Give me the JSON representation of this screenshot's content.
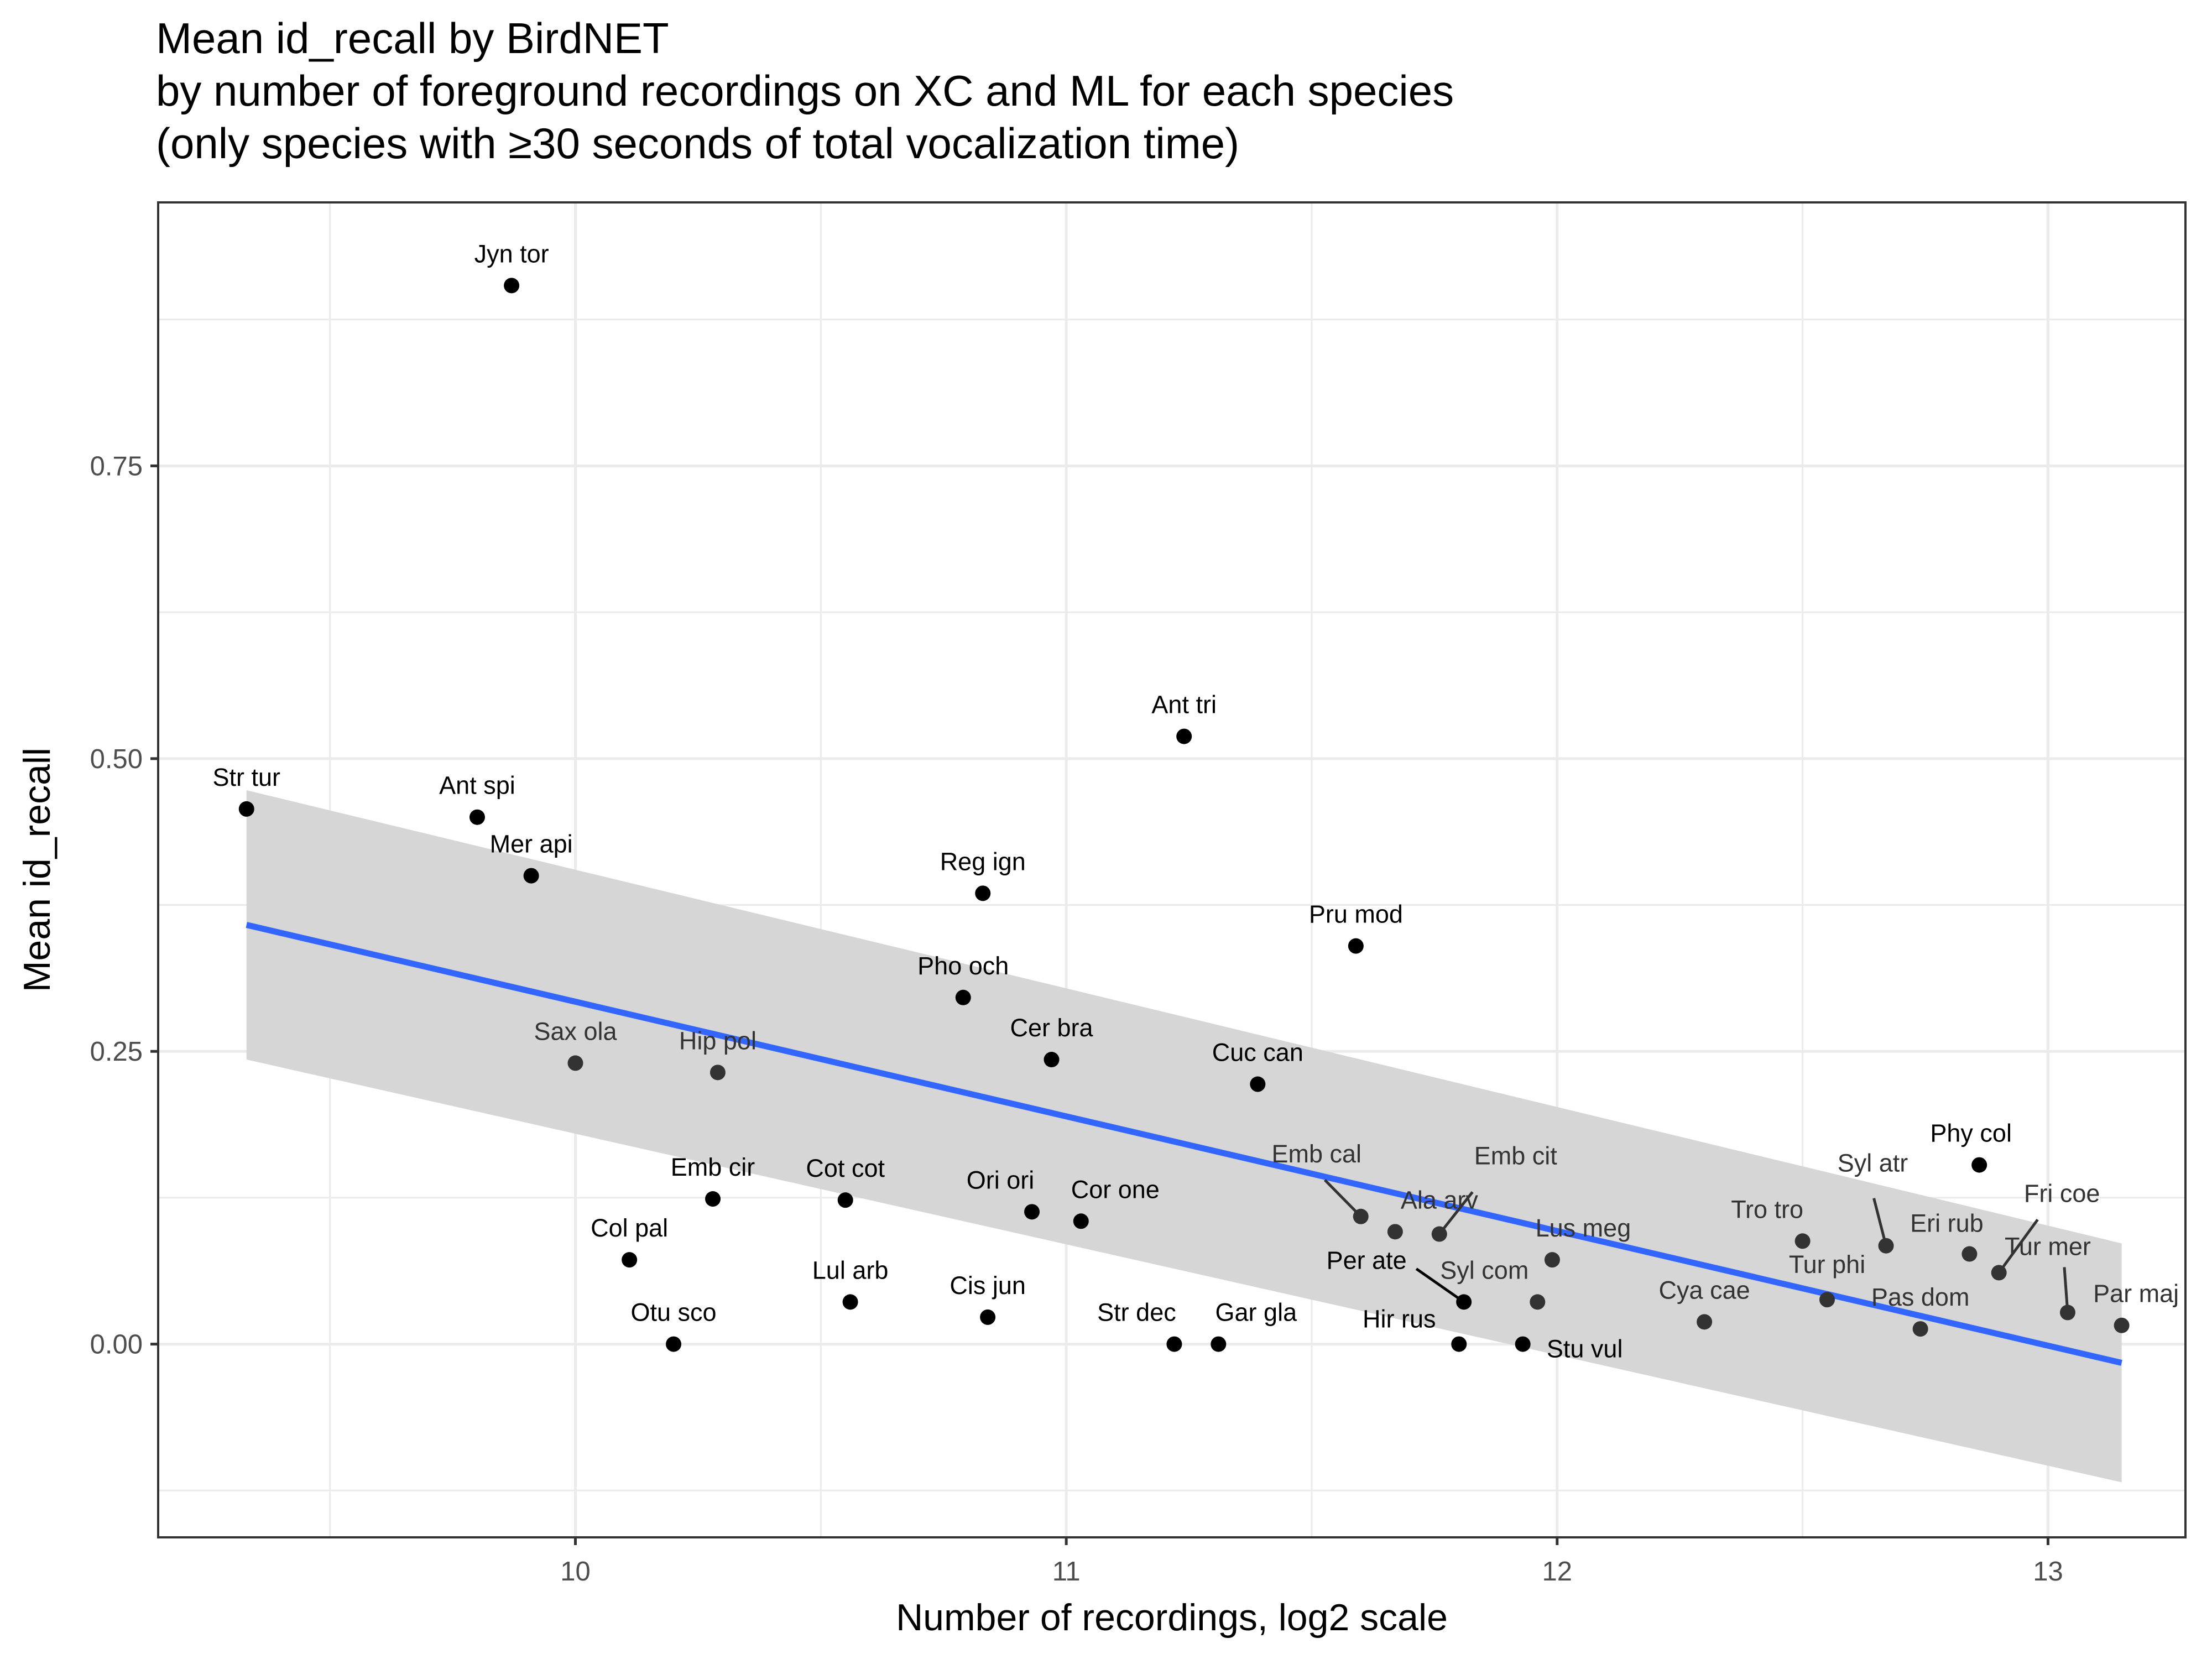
{
  "title": "Mean id_recall by BirdNET",
  "subtitle": [
    "by number of foreground recordings on XC and ML for each species",
    "(only species with ≥30 seconds of total vocalization time)"
  ],
  "chart_data": {
    "type": "scatter",
    "title": "Mean id_recall by BirdNET",
    "xlabel": "Number of recordings, log2 scale",
    "ylabel": "Mean id_recall",
    "xlim": [
      9.15,
      13.28
    ],
    "ylim": [
      -0.165,
      0.975
    ],
    "x_ticks": [
      10,
      11,
      12,
      13
    ],
    "x_tick_labels": [
      "10",
      "11",
      "12",
      "13"
    ],
    "y_ticks": [
      0.0,
      0.25,
      0.5,
      0.75
    ],
    "y_tick_labels": [
      "0.00",
      "0.25",
      "0.50",
      "0.75"
    ],
    "grid": true,
    "theme": "bw",
    "point_color": "#000000",
    "points": [
      {
        "label": "Jyn tor",
        "x": 9.87,
        "y": 0.904
      },
      {
        "label": "Str tur",
        "x": 9.33,
        "y": 0.457
      },
      {
        "label": "Ant spi",
        "x": 9.8,
        "y": 0.45
      },
      {
        "label": "Mer api",
        "x": 9.91,
        "y": 0.4
      },
      {
        "label": "Sax ola",
        "x": 10.0,
        "y": 0.24
      },
      {
        "label": "Hip pol",
        "x": 10.29,
        "y": 0.232
      },
      {
        "label": "Emb cir",
        "x": 10.28,
        "y": 0.124
      },
      {
        "label": "Col pal",
        "x": 10.11,
        "y": 0.072
      },
      {
        "label": "Otu sco",
        "x": 10.2,
        "y": 0.0
      },
      {
        "label": "Cot cot",
        "x": 10.55,
        "y": 0.123
      },
      {
        "label": "Lul arb",
        "x": 10.56,
        "y": 0.036
      },
      {
        "label": "Reg ign",
        "x": 10.83,
        "y": 0.385
      },
      {
        "label": "Pho och",
        "x": 10.79,
        "y": 0.296
      },
      {
        "label": "Cer bra",
        "x": 10.97,
        "y": 0.243
      },
      {
        "label": "Ori ori",
        "x": 10.93,
        "y": 0.113
      },
      {
        "label": "Cis jun",
        "x": 10.84,
        "y": 0.023
      },
      {
        "label": "Cor one",
        "x": 11.03,
        "y": 0.105
      },
      {
        "label": "Ant tri",
        "x": 11.24,
        "y": 0.519
      },
      {
        "label": "Str dec",
        "x": 11.22,
        "y": 0.0
      },
      {
        "label": "Gar gla",
        "x": 11.31,
        "y": 0.0
      },
      {
        "label": "Cuc can",
        "x": 11.39,
        "y": 0.222
      },
      {
        "label": "Pru mod",
        "x": 11.59,
        "y": 0.34
      },
      {
        "label": "Emb cal",
        "x": 11.6,
        "y": 0.109
      },
      {
        "label": "Ala arv",
        "x": 11.67,
        "y": 0.096
      },
      {
        "label": "Emb cit",
        "x": 11.76,
        "y": 0.094
      },
      {
        "label": "Per ate",
        "x": 11.81,
        "y": 0.036
      },
      {
        "label": "Hir rus",
        "x": 11.8,
        "y": 0.0
      },
      {
        "label": "Syl com",
        "x": 11.96,
        "y": 0.036
      },
      {
        "label": "Stu vul",
        "x": 11.93,
        "y": 0.0
      },
      {
        "label": "Lus meg",
        "x": 11.99,
        "y": 0.072
      },
      {
        "label": "Cya cae",
        "x": 12.3,
        "y": 0.019
      },
      {
        "label": "Tro tro",
        "x": 12.5,
        "y": 0.088
      },
      {
        "label": "Tur phi",
        "x": 12.55,
        "y": 0.038
      },
      {
        "label": "Syl atr",
        "x": 12.67,
        "y": 0.084
      },
      {
        "label": "Pas dom",
        "x": 12.74,
        "y": 0.013
      },
      {
        "label": "Eri rub",
        "x": 12.84,
        "y": 0.077
      },
      {
        "label": "Phy col",
        "x": 12.86,
        "y": 0.153
      },
      {
        "label": "Fri coe",
        "x": 12.9,
        "y": 0.061
      },
      {
        "label": "Tur mer",
        "x": 13.04,
        "y": 0.027
      },
      {
        "label": "Par maj",
        "x": 13.15,
        "y": 0.016
      }
    ],
    "trend": {
      "type": "linear",
      "color": "#3366FF",
      "x": [
        9.33,
        13.15
      ],
      "y": [
        0.358,
        -0.016
      ],
      "band_color": "#d6d6d6",
      "band_lower": [
        0.243,
        -0.118
      ],
      "band_upper": [
        0.473,
        0.086
      ]
    }
  }
}
